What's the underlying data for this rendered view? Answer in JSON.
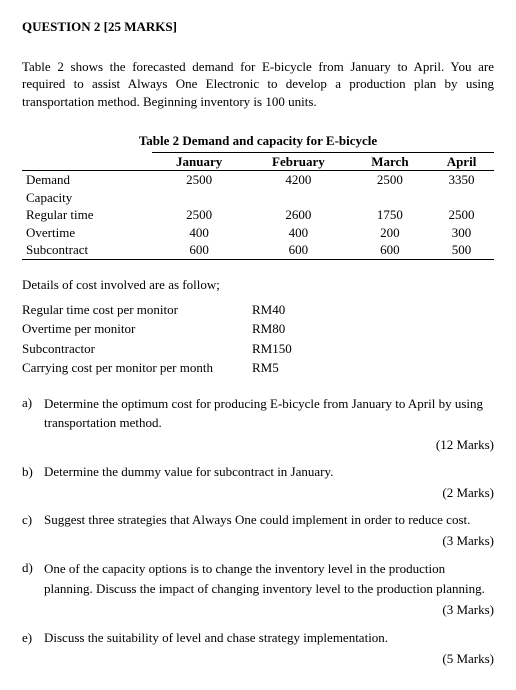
{
  "title": "QUESTION 2 [25 MARKS]",
  "intro_p1": "Table 2 shows the forecasted demand for E-bicycle from January to April. You are required to assist Always One Electronic to develop a production plan by using transportation method. Beginning inventory is 100 units.",
  "table_caption": "Table 2 Demand and capacity for E-bicycle",
  "months": {
    "m1": "January",
    "m2": "February",
    "m3": "March",
    "m4": "April"
  },
  "rows": {
    "demand": {
      "label": "Demand",
      "v": {
        "m1": "2500",
        "m2": "4200",
        "m3": "2500",
        "m4": "3350"
      }
    },
    "capacity": {
      "label": "Capacity"
    },
    "regular": {
      "label": "Regular time",
      "v": {
        "m1": "2500",
        "m2": "2600",
        "m3": "1750",
        "m4": "2500"
      }
    },
    "overtime": {
      "label": "Overtime",
      "v": {
        "m1": "400",
        "m2": "400",
        "m3": "200",
        "m4": "300"
      }
    },
    "subcon": {
      "label": "Subcontract",
      "v": {
        "m1": "600",
        "m2": "600",
        "m3": "600",
        "m4": "500"
      }
    }
  },
  "costs_intro": "Details of cost involved are as follow;",
  "costs": {
    "regular": {
      "label": "Regular time cost per monitor",
      "value": "RM40"
    },
    "overtime": {
      "label": "Overtime per monitor",
      "value": "RM80"
    },
    "subcon": {
      "label": "Subcontractor",
      "value": "RM150"
    },
    "carrying": {
      "label": "Carrying cost per monitor per month",
      "value": "RM5"
    }
  },
  "questions": {
    "a": {
      "idx": "a)",
      "text": "Determine the optimum cost for producing E-bicycle from January to April by using transportation method.",
      "marks": "(12 Marks)"
    },
    "b": {
      "idx": "b)",
      "text": "Determine the dummy value for subcontract in January.",
      "marks": "(2 Marks)"
    },
    "c": {
      "idx": "c)",
      "text": "Suggest three strategies that Always One could implement in order to reduce cost.",
      "marks": "(3 Marks)"
    },
    "d": {
      "idx": "d)",
      "text": "One of the capacity options is to change the inventory level in the production planning. Discuss the impact of changing inventory level to the production planning.",
      "marks": "(3 Marks)"
    },
    "e": {
      "idx": "e)",
      "text": "Discuss the suitability of level and chase strategy implementation.",
      "marks": "(5 Marks)"
    }
  }
}
